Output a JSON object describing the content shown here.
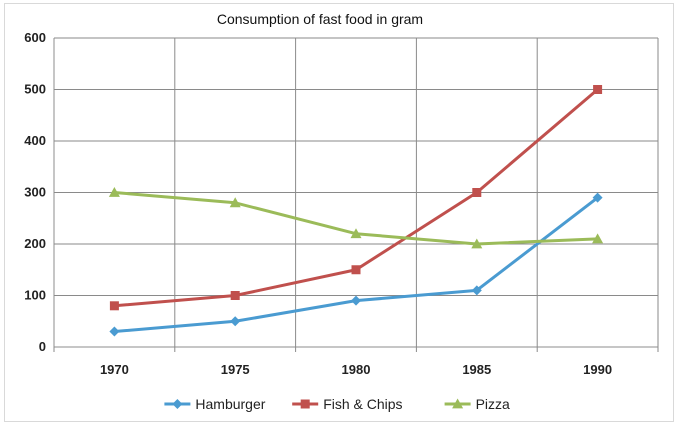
{
  "chart_data": {
    "type": "line",
    "title": "Consumption of fast food in gram",
    "xlabel": "",
    "ylabel": "",
    "categories": [
      "1970",
      "1975",
      "1980",
      "1985",
      "1990"
    ],
    "ylim": [
      0,
      600
    ],
    "yticks": [
      0,
      100,
      200,
      300,
      400,
      500,
      600
    ],
    "grid": true,
    "legend_position": "bottom",
    "series": [
      {
        "name": "Hamburger",
        "color": "#4a9bd1",
        "marker": "diamond",
        "values": [
          30,
          50,
          90,
          110,
          290
        ]
      },
      {
        "name": "Fish & Chips",
        "color": "#c0504d",
        "marker": "square",
        "values": [
          80,
          100,
          150,
          300,
          500
        ]
      },
      {
        "name": "Pizza",
        "color": "#9bbb59",
        "marker": "triangle",
        "values": [
          300,
          280,
          220,
          200,
          210
        ]
      }
    ]
  }
}
